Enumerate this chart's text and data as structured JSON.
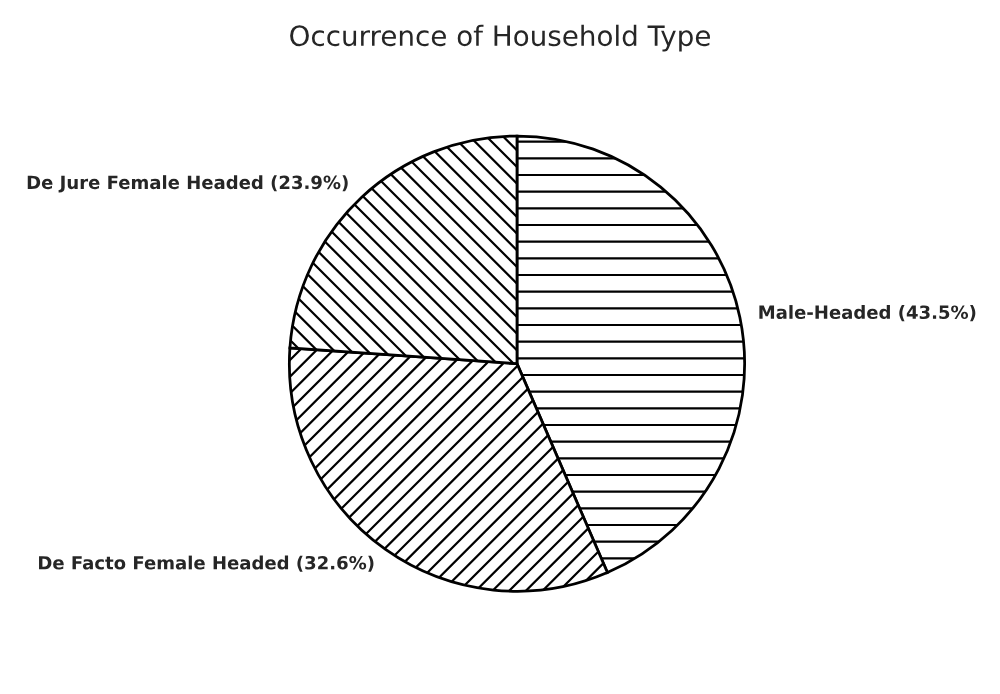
{
  "chart_data": {
    "type": "pie",
    "title": "Occurrence of Household Type",
    "categories": [
      "Male-Headed (43.5%)",
      "De Facto Female Headed (32.6%)",
      "De Jure Female Headed (23.9%)"
    ],
    "values": [
      43.5,
      32.6,
      23.9
    ]
  }
}
